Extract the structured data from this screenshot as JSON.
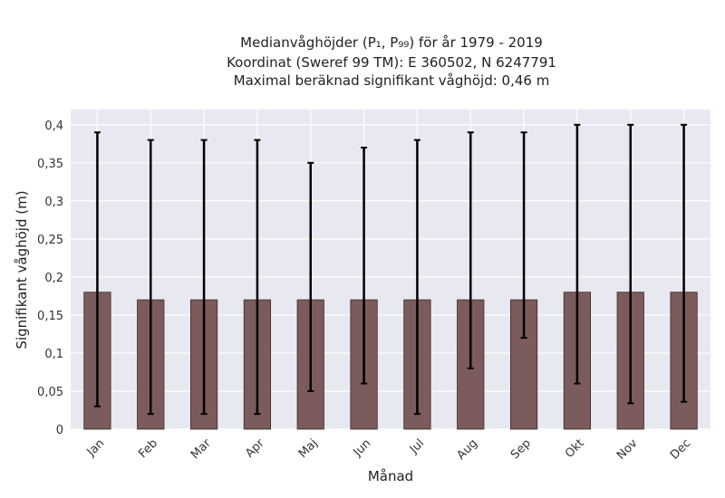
{
  "chart_data": {
    "type": "bar",
    "title_lines": [
      "Medianvåghöjder (P₁, P₉₉) för år 1979 - 2019",
      "Koordinat (Sweref 99 TM): E 360502, N 6247791",
      "Maximal beräknad signifikant våghöjd: 0,46 m"
    ],
    "xlabel": "Månad",
    "ylabel": "Signifikant våghöjd (m)",
    "ylim": [
      0,
      0.42
    ],
    "yticks": [
      0,
      0.05,
      0.1,
      0.15,
      0.2,
      0.25,
      0.3,
      0.35,
      0.4
    ],
    "ytick_labels": [
      "0",
      "0,05",
      "0,1",
      "0,15",
      "0,2",
      "0,25",
      "0,3",
      "0,35",
      "0,4"
    ],
    "categories": [
      "Jan",
      "Feb",
      "Mar",
      "Apr",
      "Maj",
      "Jun",
      "Jul",
      "Aug",
      "Sep",
      "Okt",
      "Nov",
      "Dec"
    ],
    "values": [
      0.18,
      0.17,
      0.17,
      0.17,
      0.17,
      0.17,
      0.17,
      0.17,
      0.17,
      0.18,
      0.18,
      0.18
    ],
    "p1": [
      0.03,
      0.02,
      0.02,
      0.02,
      0.05,
      0.06,
      0.02,
      0.08,
      0.12,
      0.06,
      0.034,
      0.036
    ],
    "p99": [
      0.39,
      0.38,
      0.38,
      0.38,
      0.35,
      0.37,
      0.38,
      0.39,
      0.39,
      0.4,
      0.4,
      0.4
    ],
    "grid": true,
    "colors": {
      "bar": "#7b5b5b",
      "bar_edge": "#3a2a2a",
      "plot_bg": "#e8e8f1",
      "grid": "#ffffff",
      "errorbar": "#000000"
    }
  }
}
